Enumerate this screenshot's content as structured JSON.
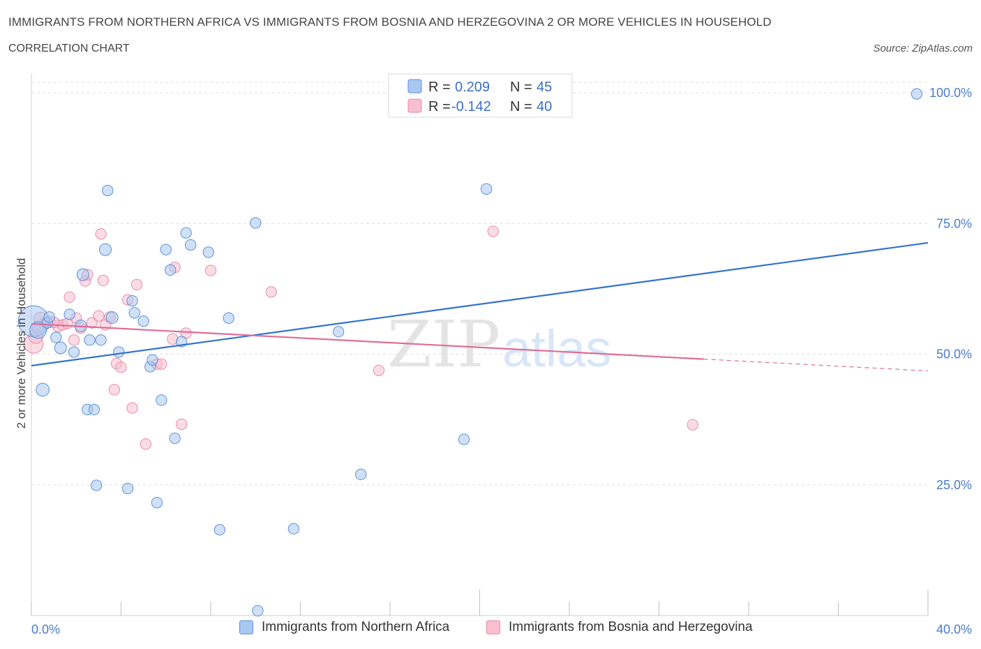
{
  "title": "IMMIGRANTS FROM NORTHERN AFRICA VS IMMIGRANTS FROM BOSNIA AND HERZEGOVINA 2 OR MORE VEHICLES IN HOUSEHOLD",
  "subtitle": "CORRELATION CHART",
  "source": "Source: ZipAtlas.com",
  "watermark": {
    "zip": "ZIP",
    "atlas": "atlas"
  },
  "colors": {
    "blue_fill": "#a9c8f0",
    "blue_stroke": "#5a8fd8",
    "blue_line": "#3372cc",
    "pink_fill": "#f7bfd0",
    "pink_stroke": "#e88aa8",
    "pink_line": "#e06c96",
    "tick_text": "#4a7cc9",
    "grid": "#dddddd"
  },
  "legend_box": {
    "rows": [
      {
        "r_label": "R =",
        "r_value": "0.209",
        "n_label": "N =",
        "n_value": "45",
        "series": "blue"
      },
      {
        "r_label": "R =",
        "r_value": "-0.142",
        "n_label": "N =",
        "n_value": "40",
        "series": "pink"
      }
    ]
  },
  "bottom_legend": [
    {
      "label": "Immigrants from Northern Africa",
      "series": "blue"
    },
    {
      "label": "Immigrants from Bosnia and Herzegovina",
      "series": "pink"
    }
  ],
  "chart_data": {
    "type": "scatter",
    "title": "IMMIGRANTS FROM NORTHERN AFRICA VS IMMIGRANTS FROM BOSNIA AND HERZEGOVINA 2 OR MORE VEHICLES IN HOUSEHOLD",
    "xlabel": "",
    "ylabel": "2 or more Vehicles in Household",
    "xlim": [
      0,
      40
    ],
    "ylim": [
      0,
      100
    ],
    "x_tick_labels": [
      "0.0%",
      "40.0%"
    ],
    "y_ticks": [
      25,
      50,
      75,
      100
    ],
    "y_tick_labels": [
      "25.0%",
      "50.0%",
      "75.0%",
      "100.0%"
    ],
    "grid": true,
    "legend_position": "top-center",
    "series": [
      {
        "name": "Immigrants from Northern Africa",
        "color": "blue",
        "R": 0.209,
        "N": 45,
        "trend": {
          "x0": 0,
          "y0": 47.8,
          "x1": 40,
          "y1": 71.3,
          "dashed_from": null
        },
        "points": [
          [
            0.1,
            56.3,
            2.6
          ],
          [
            0.3,
            54.6,
            1.4
          ],
          [
            0.5,
            43.2,
            1.1
          ],
          [
            0.7,
            56.0,
            0.9
          ],
          [
            0.8,
            57.1,
            0.9
          ],
          [
            1.1,
            53.2,
            0.9
          ],
          [
            1.3,
            51.2,
            1.0
          ],
          [
            1.7,
            57.6,
            0.9
          ],
          [
            1.9,
            50.4,
            0.9
          ],
          [
            2.2,
            55.4,
            1.0
          ],
          [
            2.3,
            65.2,
            1.0
          ],
          [
            2.5,
            39.4,
            0.9
          ],
          [
            2.6,
            52.7,
            0.9
          ],
          [
            2.8,
            39.4,
            0.9
          ],
          [
            2.9,
            24.9,
            0.9
          ],
          [
            3.1,
            52.7,
            0.9
          ],
          [
            3.3,
            70.0,
            1.0
          ],
          [
            3.4,
            81.3,
            0.9
          ],
          [
            3.6,
            57.0,
            1.0
          ],
          [
            3.9,
            50.4,
            0.9
          ],
          [
            4.3,
            24.3,
            0.9
          ],
          [
            4.5,
            60.2,
            0.9
          ],
          [
            4.6,
            57.9,
            0.9
          ],
          [
            5.0,
            56.3,
            0.9
          ],
          [
            5.3,
            47.6,
            0.9
          ],
          [
            5.4,
            48.9,
            0.9
          ],
          [
            5.6,
            21.6,
            0.9
          ],
          [
            5.8,
            41.2,
            0.9
          ],
          [
            6.0,
            70.0,
            0.9
          ],
          [
            6.2,
            66.1,
            0.9
          ],
          [
            6.4,
            33.9,
            0.9
          ],
          [
            6.7,
            52.4,
            0.9
          ],
          [
            6.9,
            73.2,
            0.9
          ],
          [
            7.1,
            70.9,
            0.9
          ],
          [
            7.9,
            69.5,
            0.9
          ],
          [
            8.4,
            16.4,
            0.9
          ],
          [
            8.8,
            56.9,
            0.9
          ],
          [
            10.0,
            75.1,
            0.9
          ],
          [
            10.1,
            0.9,
            0.9
          ],
          [
            11.7,
            16.6,
            0.9
          ],
          [
            13.7,
            54.3,
            0.9
          ],
          [
            14.7,
            27.0,
            0.9
          ],
          [
            19.3,
            33.7,
            0.9
          ],
          [
            20.3,
            81.6,
            0.9
          ],
          [
            39.5,
            99.8,
            0.9
          ]
        ]
      },
      {
        "name": "Immigrants from Bosnia and Herzegovina",
        "color": "pink",
        "R": -0.142,
        "N": 40,
        "trend": {
          "x0": 0,
          "y0": 55.8,
          "x1": 40,
          "y1": 46.8,
          "dashed_from": 30
        },
        "points": [
          [
            0.1,
            52.0,
            1.6
          ],
          [
            0.2,
            53.4,
            1.2
          ],
          [
            0.4,
            56.8,
            1.1
          ],
          [
            0.6,
            55.8,
            1.0
          ],
          [
            0.8,
            56.2,
            1.0
          ],
          [
            1.2,
            55.4,
            1.0
          ],
          [
            1.4,
            55.6,
            0.9
          ],
          [
            1.6,
            55.9,
            0.9
          ],
          [
            1.7,
            60.9,
            0.9
          ],
          [
            1.9,
            52.7,
            0.9
          ],
          [
            2.0,
            56.9,
            0.9
          ],
          [
            2.2,
            55.0,
            0.9
          ],
          [
            2.4,
            64.0,
            0.9
          ],
          [
            2.5,
            65.2,
            0.9
          ],
          [
            2.7,
            56.0,
            0.9
          ],
          [
            3.0,
            57.3,
            0.9
          ],
          [
            3.1,
            73.0,
            0.9
          ],
          [
            3.2,
            64.1,
            0.9
          ],
          [
            3.3,
            55.6,
            0.9
          ],
          [
            3.5,
            57.1,
            0.9
          ],
          [
            3.7,
            43.2,
            0.9
          ],
          [
            3.8,
            48.2,
            0.9
          ],
          [
            4.0,
            47.5,
            0.9
          ],
          [
            4.3,
            60.4,
            0.9
          ],
          [
            4.5,
            39.7,
            0.9
          ],
          [
            4.7,
            63.3,
            0.9
          ],
          [
            5.1,
            32.8,
            0.9
          ],
          [
            5.6,
            48.1,
            0.9
          ],
          [
            5.8,
            48.1,
            0.9
          ],
          [
            6.3,
            52.9,
            0.9
          ],
          [
            6.4,
            66.6,
            0.9
          ],
          [
            6.7,
            36.6,
            0.9
          ],
          [
            6.9,
            54.0,
            0.9
          ],
          [
            8.0,
            66.0,
            0.9
          ],
          [
            10.7,
            61.9,
            0.9
          ],
          [
            15.5,
            46.9,
            0.9
          ],
          [
            20.6,
            73.5,
            0.9
          ],
          [
            29.5,
            36.5,
            0.9
          ],
          [
            0.3,
            55.1,
            1.0
          ],
          [
            1.0,
            56.1,
            0.9
          ]
        ]
      }
    ]
  }
}
